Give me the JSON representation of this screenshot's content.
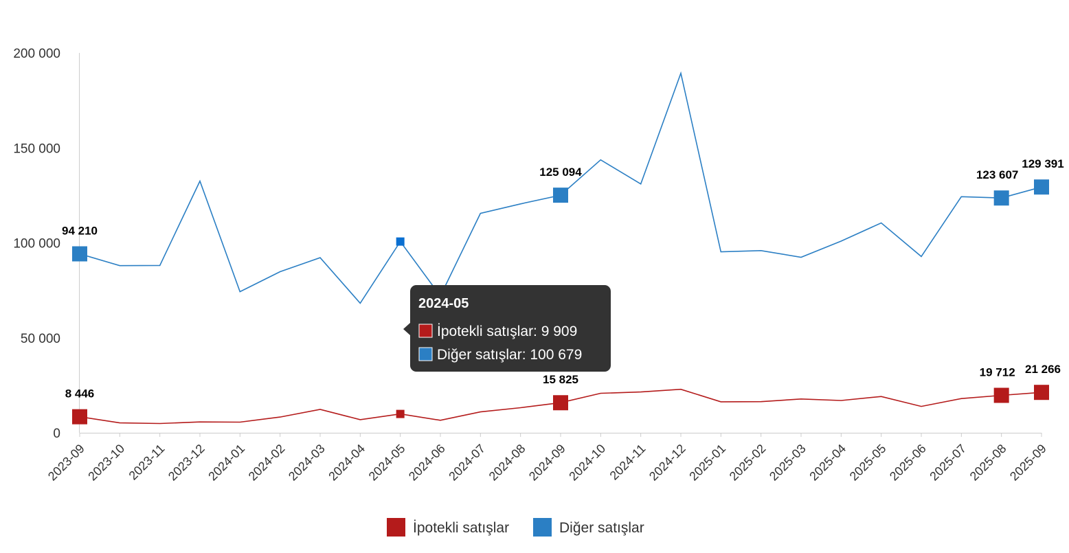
{
  "chart_data": {
    "type": "line",
    "title": "",
    "xlabel": "",
    "ylabel": "",
    "ylim": [
      0,
      200000
    ],
    "y_ticks": [
      0,
      50000,
      100000,
      150000,
      200000
    ],
    "y_tick_labels": [
      "0",
      "50 000",
      "100 000",
      "150 000",
      "200 000"
    ],
    "categories": [
      "2023-09",
      "2023-10",
      "2023-11",
      "2023-12",
      "2024-01",
      "2024-02",
      "2024-03",
      "2024-04",
      "2024-05",
      "2024-06",
      "2024-07",
      "2024-08",
      "2024-09",
      "2024-10",
      "2024-11",
      "2024-12",
      "2025-01",
      "2025-02",
      "2025-03",
      "2025-04",
      "2025-05",
      "2025-06",
      "2025-07",
      "2025-08",
      "2025-09"
    ],
    "series": [
      {
        "name": "İpotekli satışlar",
        "color": "#b41b1b",
        "values": [
          8446,
          5200,
          4900,
          5700,
          5600,
          8300,
          12300,
          6900,
          9909,
          6600,
          11000,
          13200,
          15825,
          20800,
          21500,
          22900,
          16300,
          16400,
          17800,
          17000,
          19100,
          13900,
          18000,
          19712,
          21266
        ],
        "labeled_points": [
          {
            "index": 0,
            "label": "8 446"
          },
          {
            "index": 12,
            "label": "15 825"
          },
          {
            "index": 23,
            "label": "19 712"
          },
          {
            "index": 24,
            "label": "21 266"
          }
        ]
      },
      {
        "name": "Diğer satışlar",
        "color": "#2b7fc4",
        "values": [
          94210,
          88000,
          88100,
          132500,
          74300,
          84800,
          92200,
          68200,
          100679,
          72000,
          115500,
          120500,
          125094,
          143700,
          131000,
          189300,
          95300,
          95900,
          92400,
          100900,
          110500,
          92800,
          124300,
          123607,
          129391
        ],
        "labeled_points": [
          {
            "index": 0,
            "label": "94 210"
          },
          {
            "index": 12,
            "label": "125 094"
          },
          {
            "index": 23,
            "label": "123 607"
          },
          {
            "index": 24,
            "label": "129 391"
          }
        ]
      }
    ],
    "legend": {
      "placement": "bottom-center",
      "items": [
        "İpotekli satışlar",
        "Diğer satışlar"
      ]
    },
    "tooltip": {
      "category_index": 8,
      "title": "2024-05",
      "lines": [
        {
          "series": "İpotekli satışlar",
          "text": "İpotekli satışlar: 9 909",
          "color": "#b41b1b"
        },
        {
          "series": "Diğer satışlar",
          "text": "Diğer satışlar: 100 679",
          "color": "#2b7fc4"
        }
      ],
      "background": "#333333",
      "hover_marker_color": "#0a6fd1"
    }
  }
}
